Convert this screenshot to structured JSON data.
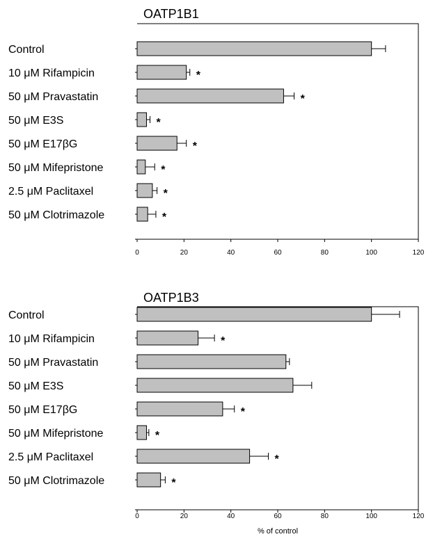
{
  "chart_data": [
    {
      "type": "bar",
      "orientation": "horizontal",
      "title": "OATP1B1",
      "categories": [
        "Control",
        "10 μM Rifampicin",
        "50 μM Pravastatin",
        "50 μM E3S",
        "50 μM E17βG",
        "50 μM Mifepristone",
        "2.5 μM Paclitaxel",
        "50 μM Clotrimazole"
      ],
      "values": [
        100,
        21,
        62.5,
        4,
        17,
        3.5,
        6.5,
        4.5
      ],
      "errors": [
        6,
        1.5,
        4.5,
        1.5,
        4,
        4,
        2,
        3.5
      ],
      "significance": [
        "",
        "*",
        "*",
        "*",
        "*",
        "*",
        "*",
        "*"
      ],
      "xlim": [
        0,
        120
      ],
      "xticks": [
        "0",
        "20",
        "40",
        "60",
        "80",
        "100",
        "120"
      ],
      "xlabel": ""
    },
    {
      "type": "bar",
      "orientation": "horizontal",
      "title": "OATP1B3",
      "categories": [
        "Control",
        "10 μM Rifampicin",
        "50 μM Pravastatin",
        "50 μM E3S",
        "50 μM E17βG",
        "50 μM Mifepristone",
        "2.5 μM Paclitaxel",
        "50 μM Clotrimazole"
      ],
      "values": [
        100,
        26,
        63.5,
        66.5,
        36.5,
        4,
        48,
        10
      ],
      "errors": [
        12,
        7,
        1.5,
        8,
        5,
        1,
        8,
        2
      ],
      "significance": [
        "",
        "*",
        "",
        "",
        "*",
        "*",
        "*",
        "*"
      ],
      "xlim": [
        0,
        120
      ],
      "xticks": [
        "0",
        "20",
        "40",
        "60",
        "80",
        "100",
        "120"
      ],
      "xlabel": "% of control"
    }
  ],
  "colors": {
    "bar_fill": "#c0c0c0",
    "stroke": "#000000"
  }
}
